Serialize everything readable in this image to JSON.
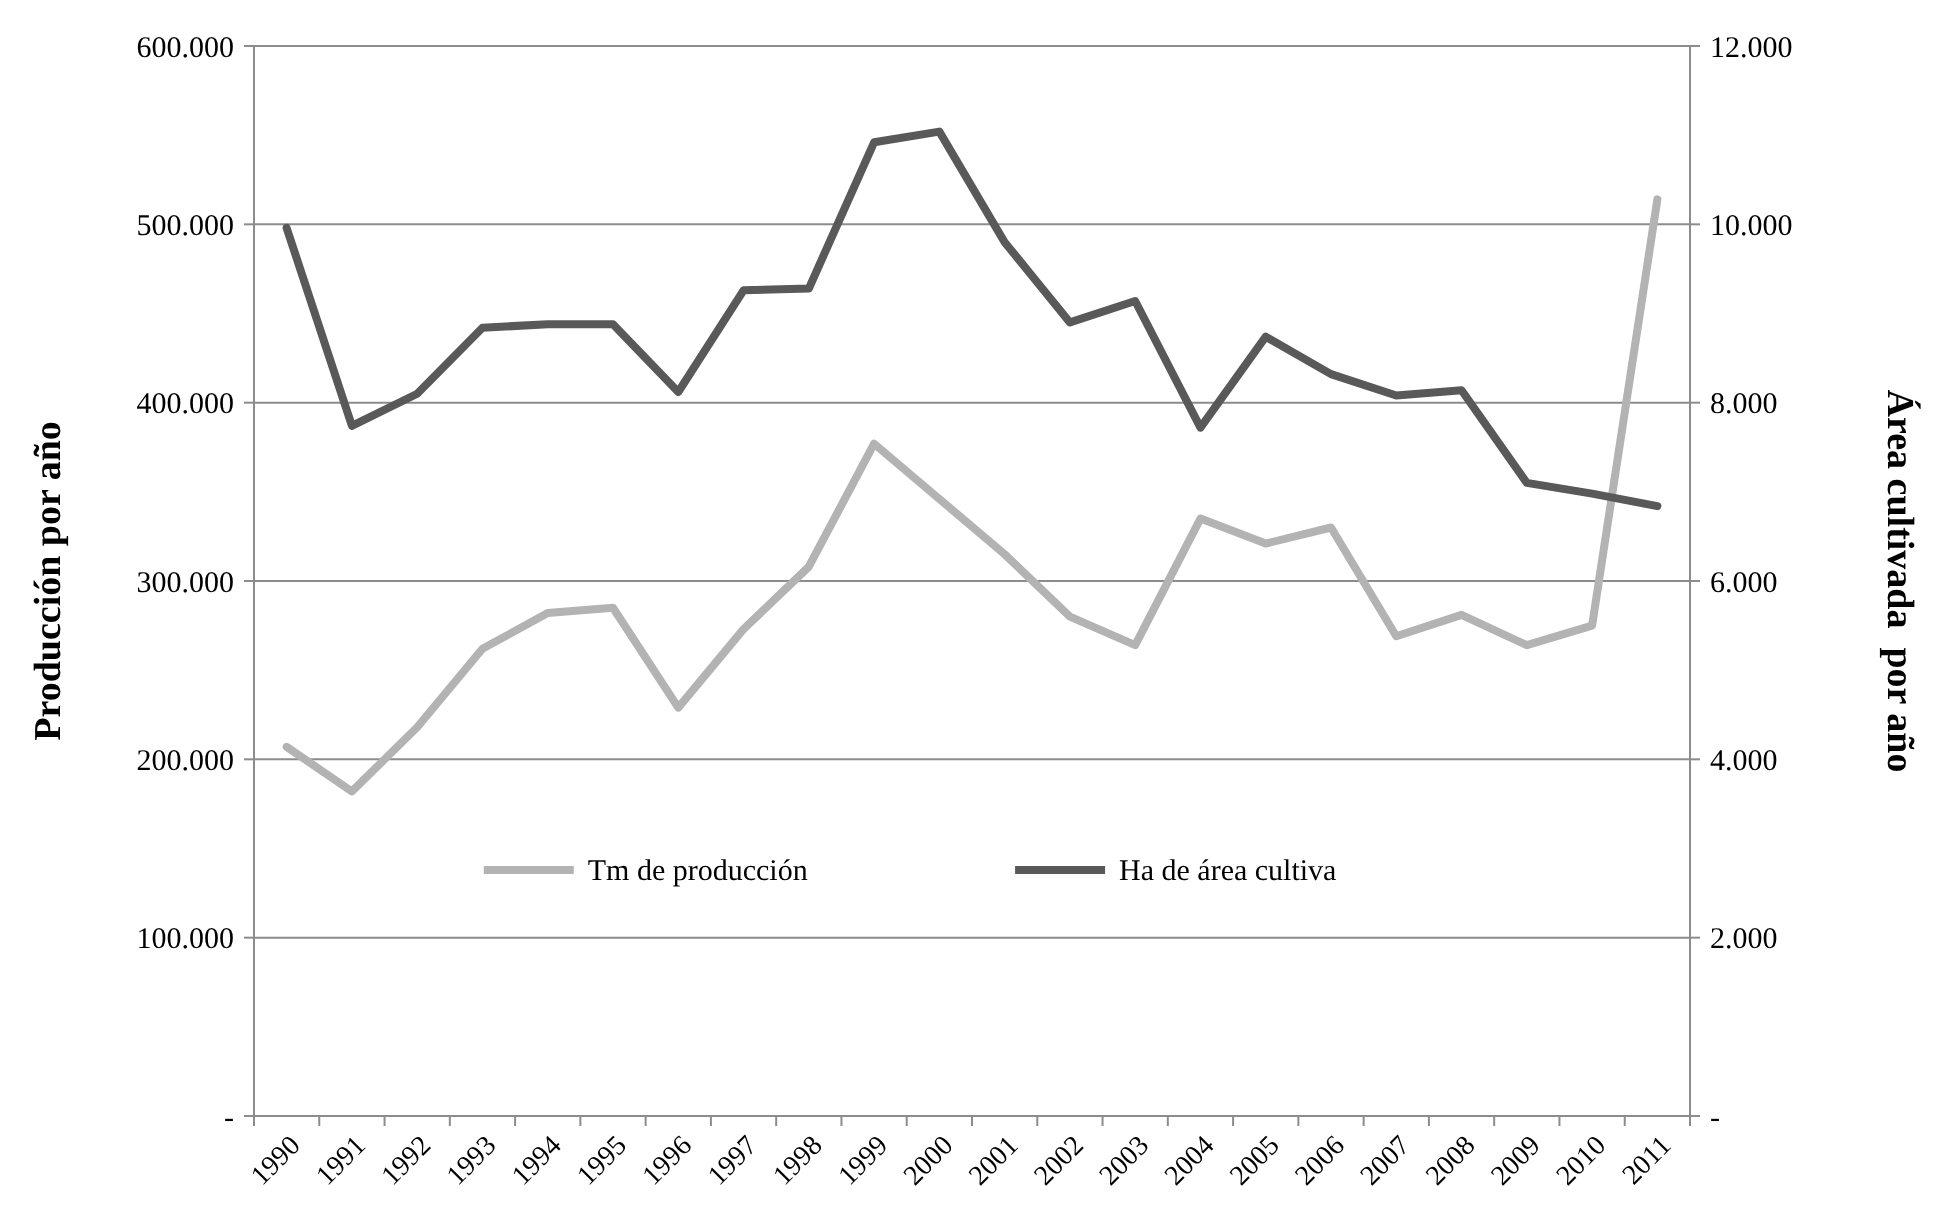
{
  "chart_data": {
    "type": "line",
    "ylabel": "Producción por año",
    "y2label": "Área cultivada  por año",
    "categories": [
      "1990",
      "1991",
      "1992",
      "1993",
      "1994",
      "1995",
      "1996",
      "1997",
      "1998",
      "1999",
      "2000",
      "2001",
      "2002",
      "2003",
      "2004",
      "2005",
      "2006",
      "2007",
      "2008",
      "2009",
      "2010",
      "2011"
    ],
    "series": [
      {
        "name": "Tm de producción",
        "color": "#b3b3b3",
        "values": [
          207000,
          182000,
          218000,
          262000,
          282000,
          285000,
          229000,
          273000,
          308000,
          377000,
          346000,
          315000,
          280000,
          264000,
          335000,
          321000,
          330000,
          269000,
          281000,
          264000,
          275000,
          514000
        ]
      },
      {
        "name": "Ha de área cultiva",
        "color": "#595959",
        "axis": "y2",
        "values": [
          9960,
          7740,
          8100,
          8840,
          8880,
          8880,
          8120,
          9260,
          9280,
          10920,
          11040,
          9800,
          8900,
          9140,
          7720,
          8740,
          8320,
          8080,
          8140,
          7100,
          6980,
          6840
        ]
      }
    ],
    "ylim": [
      0,
      600000
    ],
    "yticks": [
      {
        "value": 0,
        "label": "-"
      },
      {
        "value": 100000,
        "label": "100.000"
      },
      {
        "value": 200000,
        "label": "200.000"
      },
      {
        "value": 300000,
        "label": "300.000"
      },
      {
        "value": 400000,
        "label": "400.000"
      },
      {
        "value": 500000,
        "label": "500.000"
      },
      {
        "value": 600000,
        "label": "600.000"
      }
    ],
    "y2lim": [
      0,
      12000
    ],
    "y2ticks": [
      {
        "value": 0,
        "label": "-"
      },
      {
        "value": 2000,
        "label": "2.000"
      },
      {
        "value": 4000,
        "label": "4.000"
      },
      {
        "value": 6000,
        "label": "6.000"
      },
      {
        "value": 8000,
        "label": "8.000"
      },
      {
        "value": 10000,
        "label": "10.000"
      },
      {
        "value": 12000,
        "label": "12.000"
      }
    ],
    "grid": "y",
    "legend": "bottom",
    "marker": "none",
    "line_style": "solid"
  }
}
